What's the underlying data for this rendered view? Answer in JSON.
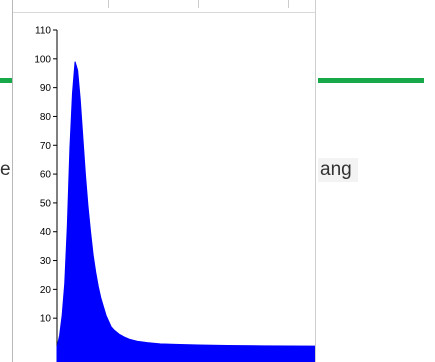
{
  "background": {
    "left_text": "e",
    "right_text": "ang",
    "accent_color": "#17a84a"
  },
  "chart_data": {
    "type": "area",
    "series_color": "#0000ff",
    "ylim": [
      0,
      110
    ],
    "y_ticks": [
      10,
      20,
      30,
      40,
      50,
      60,
      70,
      80,
      90,
      100,
      110
    ],
    "x_ticks": [],
    "grid": false,
    "legend": "none",
    "title": "",
    "xlabel": "",
    "ylabel": "",
    "series": [
      {
        "x": [
          0,
          1,
          2,
          3,
          4,
          5,
          6,
          7,
          8,
          9,
          10,
          11,
          12,
          13,
          14,
          15,
          16,
          17,
          18,
          19,
          20,
          21,
          22,
          24,
          26,
          28,
          31,
          35,
          40,
          46,
          55,
          66,
          80,
          100
        ],
        "values": [
          0,
          4,
          11,
          22,
          42,
          69,
          88,
          99,
          96,
          86,
          73,
          60,
          49,
          40,
          32,
          26,
          21,
          17,
          14,
          11,
          9,
          7,
          6,
          4.5,
          3.5,
          2.7,
          2,
          1.5,
          1.1,
          0.9,
          0.7,
          0.5,
          0.4,
          0.3
        ]
      }
    ]
  }
}
